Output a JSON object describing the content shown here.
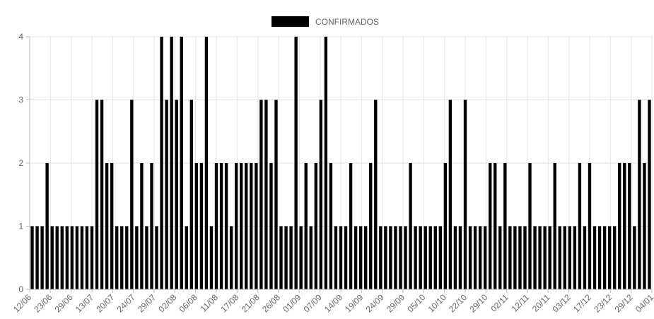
{
  "chart_data": {
    "type": "bar",
    "legend": {
      "label": "CONFIRMADOS",
      "color": "#000000",
      "position": "top"
    },
    "ylim": [
      0,
      4
    ],
    "y_ticks": [
      "0",
      "1",
      "2",
      "3",
      "4"
    ],
    "grid": true,
    "bar_color": "#000000",
    "x_tick_labels": [
      "12/06",
      "23/06",
      "29/06",
      "13/07",
      "20/07",
      "24/07",
      "29/07",
      "02/08",
      "06/08",
      "11/08",
      "17/08",
      "21/08",
      "26/08",
      "01/09",
      "07/09",
      "14/09",
      "19/09",
      "24/09",
      "29/09",
      "05/10",
      "10/10",
      "22/10",
      "29/10",
      "02/11",
      "12/11",
      "20/11",
      "03/12",
      "17/12",
      "23/12",
      "29/12",
      "04/01"
    ],
    "values": [
      1,
      1,
      1,
      2,
      1,
      1,
      1,
      1,
      1,
      1,
      1,
      1,
      1,
      3,
      3,
      2,
      2,
      1,
      1,
      1,
      3,
      1,
      2,
      1,
      2,
      1,
      4,
      3,
      4,
      3,
      4,
      1,
      3,
      2,
      2,
      4,
      1,
      2,
      2,
      2,
      1,
      2,
      2,
      2,
      2,
      2,
      3,
      3,
      2,
      3,
      1,
      1,
      1,
      4,
      1,
      2,
      1,
      2,
      3,
      4,
      2,
      1,
      1,
      1,
      2,
      1,
      1,
      1,
      2,
      3,
      1,
      1,
      1,
      1,
      1,
      1,
      2,
      1,
      1,
      1,
      1,
      1,
      1,
      2,
      3,
      1,
      1,
      3,
      1,
      1,
      1,
      1,
      2,
      2,
      1,
      2,
      1,
      1,
      1,
      1,
      2,
      1,
      1,
      1,
      1,
      2,
      1,
      1,
      1,
      1,
      2,
      1,
      2,
      1,
      1,
      1,
      1,
      1,
      2,
      2,
      2,
      1,
      3,
      2,
      3
    ]
  }
}
